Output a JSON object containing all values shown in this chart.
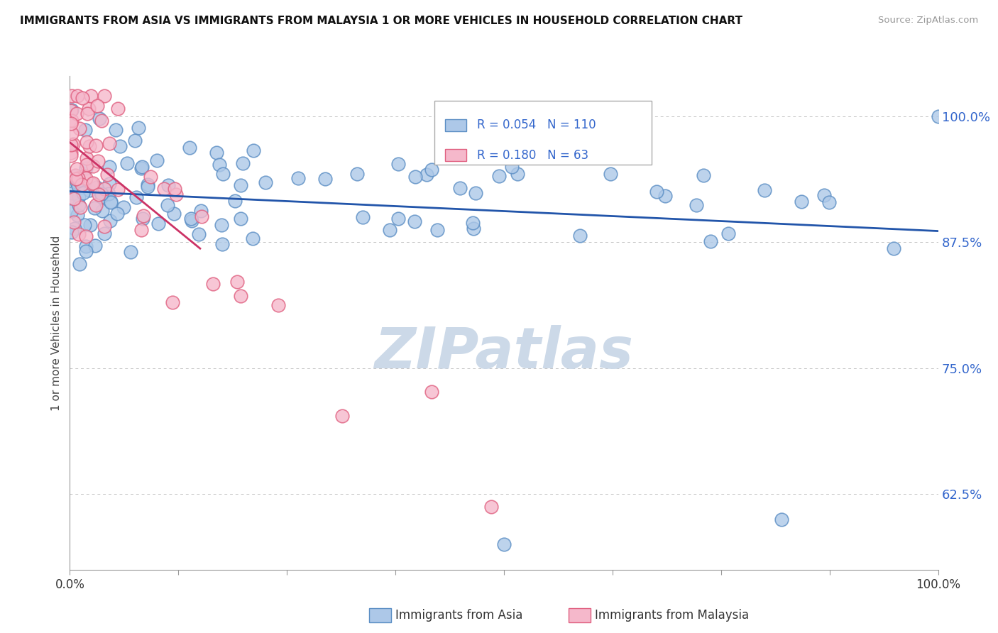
{
  "title": "IMMIGRANTS FROM ASIA VS IMMIGRANTS FROM MALAYSIA 1 OR MORE VEHICLES IN HOUSEHOLD CORRELATION CHART",
  "source": "Source: ZipAtlas.com",
  "ylabel": "1 or more Vehicles in Household",
  "yticks": [
    62.5,
    75.0,
    87.5,
    100.0
  ],
  "legend_asia_R": "0.054",
  "legend_asia_N": "110",
  "legend_malaysia_R": "0.180",
  "legend_malaysia_N": "63",
  "legend_label_asia": "Immigrants from Asia",
  "legend_label_malaysia": "Immigrants from Malaysia",
  "asia_color": "#adc8e8",
  "asia_edge_color": "#5b8ec4",
  "malaysia_color": "#f5b8cb",
  "malaysia_edge_color": "#e06080",
  "asia_line_color": "#2255aa",
  "malaysia_line_color": "#cc3366",
  "ytick_color": "#3366cc",
  "background_color": "#ffffff",
  "watermark_color": "#ccd9e8",
  "grid_color": "#aaaaaa",
  "note_color": "#888888"
}
